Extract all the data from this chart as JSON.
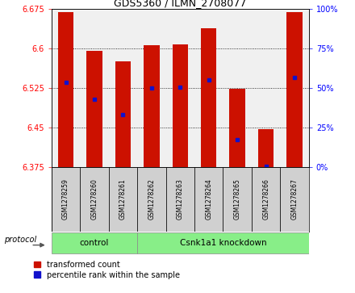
{
  "title": "GDS5360 / ILMN_2708077",
  "samples": [
    "GSM1278259",
    "GSM1278260",
    "GSM1278261",
    "GSM1278262",
    "GSM1278263",
    "GSM1278264",
    "GSM1278265",
    "GSM1278266",
    "GSM1278267"
  ],
  "bar_tops": [
    6.669,
    6.595,
    6.576,
    6.606,
    6.608,
    6.638,
    6.524,
    6.447,
    6.669
  ],
  "bar_bottom": 6.375,
  "blue_marker_values": [
    6.535,
    6.503,
    6.475,
    6.525,
    6.527,
    6.54,
    6.427,
    6.376,
    6.545
  ],
  "ylim": [
    6.375,
    6.675
  ],
  "yticks_left": [
    6.375,
    6.45,
    6.525,
    6.6,
    6.675
  ],
  "yticks_right": [
    0,
    25,
    50,
    75,
    100
  ],
  "bar_color": "#cc1100",
  "blue_color": "#1111cc",
  "legend_items": [
    "transformed count",
    "percentile rank within the sample"
  ],
  "background_color": "#ffffff",
  "panel_bg": "#f0f0f0",
  "label_bg": "#d0d0d0",
  "green_color": "#88ee88"
}
